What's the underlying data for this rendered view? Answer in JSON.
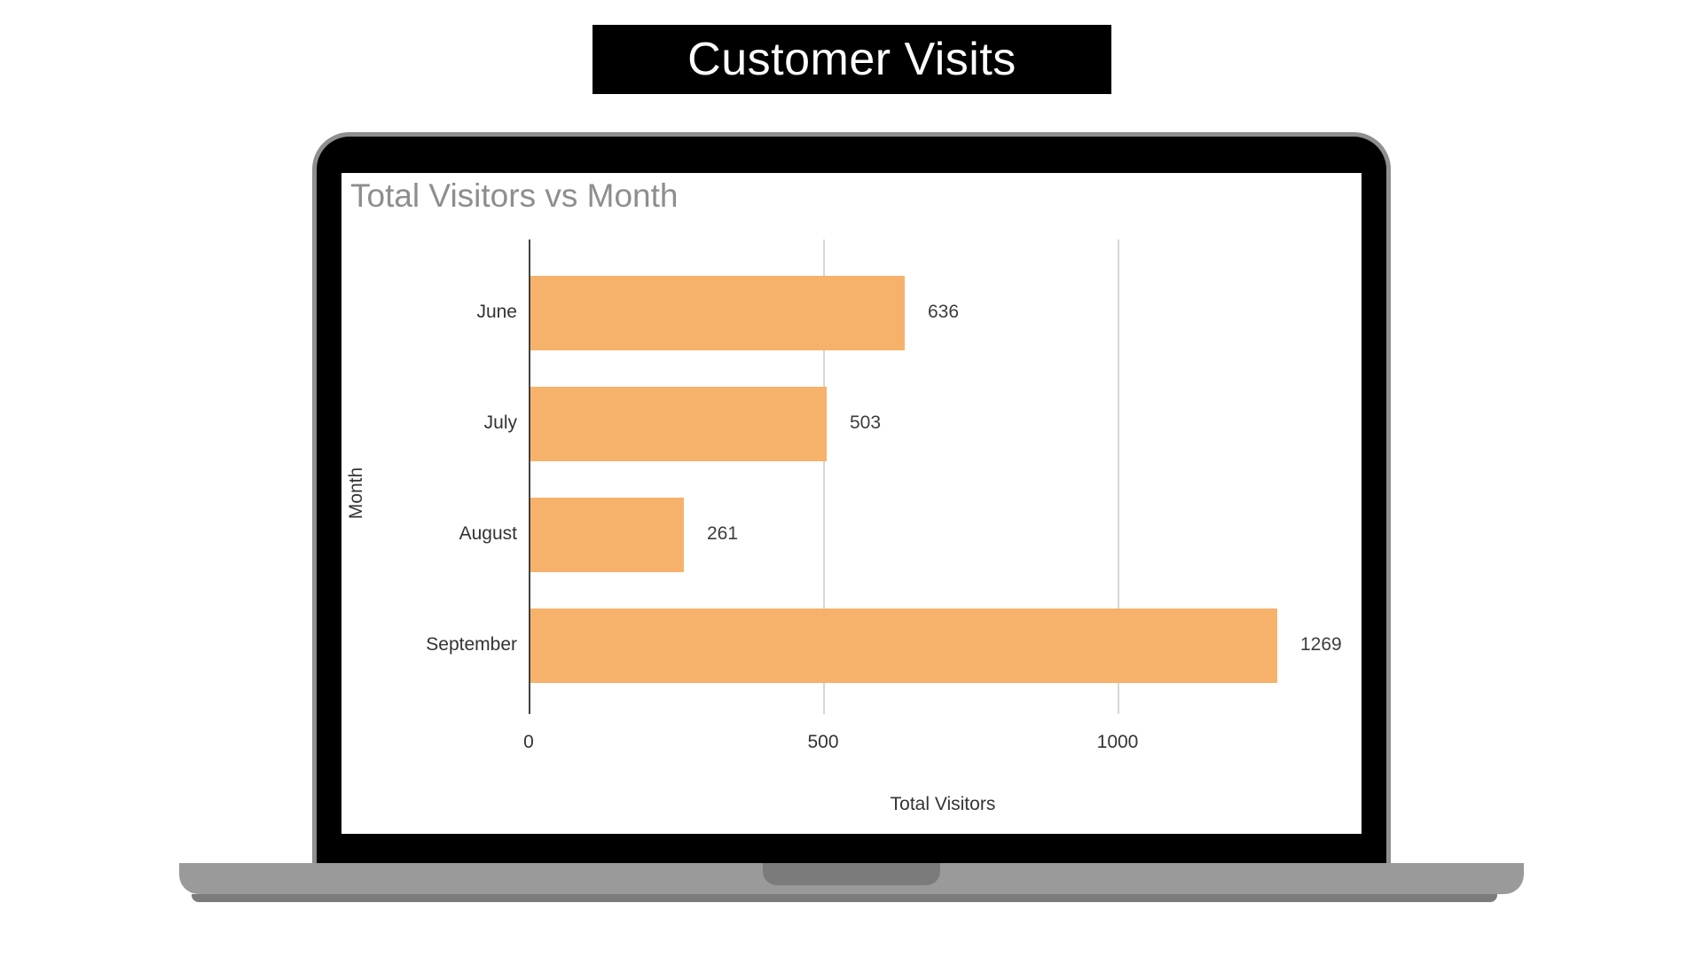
{
  "page_title": {
    "label": "Customer Visits"
  },
  "colors": {
    "banner_bg": "#000000",
    "banner_text": "#ffffff",
    "bar": "#F6B26B",
    "chart_title": "#8e8e8e",
    "axis_line": "#424242",
    "gridline": "#d6d6d6",
    "label_text": "#333333",
    "laptop_bezel": "#000000",
    "laptop_rim": "#8f8f8f",
    "laptop_base": "#9a9a9a",
    "laptop_base_dark": "#7b7b7b"
  },
  "chart_data": {
    "type": "bar",
    "orientation": "horizontal",
    "title": "Total Visitors vs Month",
    "categories": [
      "June",
      "July",
      "August",
      "September"
    ],
    "values": [
      636,
      503,
      261,
      1269
    ],
    "value_labels": [
      "636",
      "503",
      "261",
      "1269"
    ],
    "xlabel": "Total Visitors",
    "ylabel": "Month",
    "x_ticks": [
      0,
      500,
      1000
    ],
    "xlim": [
      0,
      1407
    ],
    "grid": true,
    "legend": false,
    "bar_color": "#F6B26B"
  }
}
